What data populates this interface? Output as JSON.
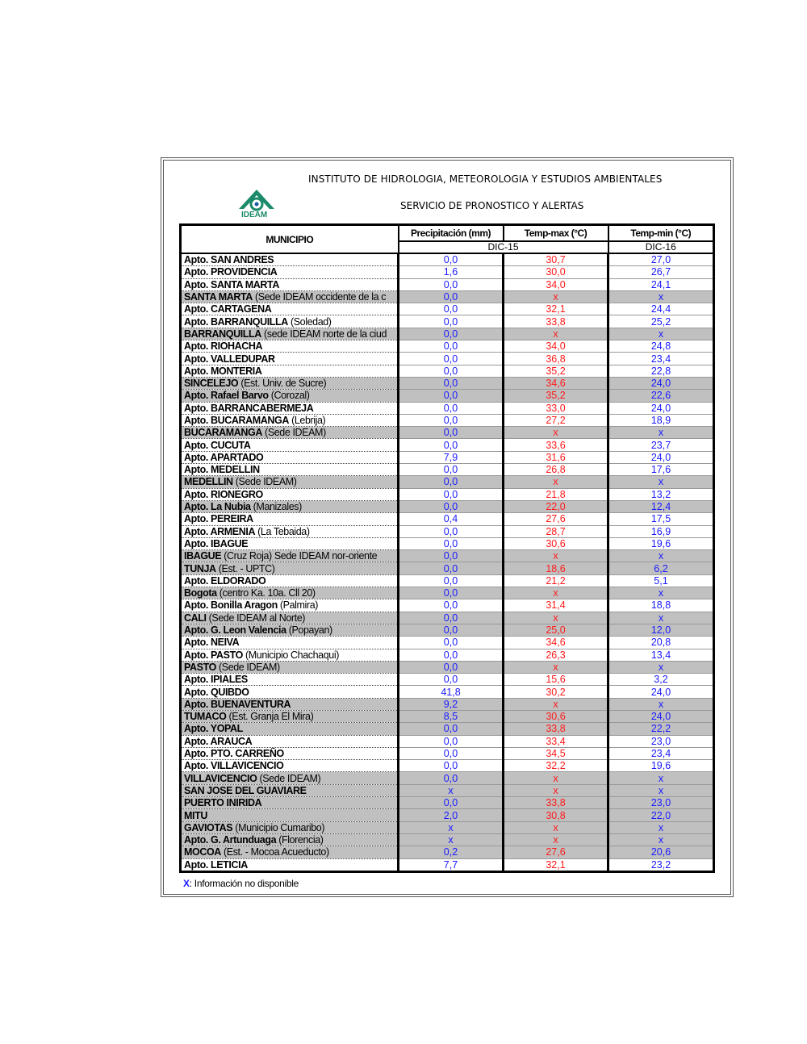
{
  "header": {
    "institute": "INSTITUTO DE HIDROLOGIA, METEOROLOGIA Y ESTUDIOS AMBIENTALES",
    "service": "SERVICIO DE PRONOSTICO Y ALERTAS",
    "logo_text": "IDEAM"
  },
  "colors": {
    "precip": "#1a1aff",
    "tmax": "#ff1a1a",
    "tmin": "#1a1aff",
    "shade": "#c0c0c0"
  },
  "table": {
    "columns": [
      "MUNICIPIO",
      "Precipitación (mm)",
      "Temp-max (°C)",
      "Temp-min (°C)"
    ],
    "date_1": "DIC-15",
    "date_2": "DIC-16",
    "rows": [
      [
        "Apto. SAN ANDRES",
        "",
        "0,0",
        "30,7",
        "27,0",
        0
      ],
      [
        "Apto. PROVIDENCIA",
        "",
        "1,6",
        "30,0",
        "26,7",
        0
      ],
      [
        "Apto. SANTA MARTA",
        "",
        "0,0",
        "34,0",
        "24,1",
        0
      ],
      [
        "SANTA MARTA",
        " (Sede IDEAM occidente de la c",
        "0,0",
        "x",
        "x",
        1
      ],
      [
        "Apto. CARTAGENA",
        "",
        "0,0",
        "32,1",
        "24,4",
        0
      ],
      [
        "Apto. BARRANQUILLA",
        " (Soledad)",
        "0,0",
        "33,8",
        "25,2",
        0
      ],
      [
        "BARRANQUILLA",
        " (sede IDEAM norte de la ciud",
        "0,0",
        "x",
        "x",
        1
      ],
      [
        "Apto. RIOHACHA",
        "",
        "0,0",
        "34,0",
        "24,8",
        0
      ],
      [
        "Apto. VALLEDUPAR",
        "",
        "0,0",
        "36,8",
        "23,4",
        0
      ],
      [
        "Apto. MONTERIA",
        "",
        "0,0",
        "35,2",
        "22,8",
        0
      ],
      [
        "SINCELEJO",
        " (Est. Univ. de Sucre)",
        "0,0",
        "34,6",
        "24,0",
        1
      ],
      [
        "Apto. Rafael Barvo",
        " (Corozal)",
        "0,0",
        "35,2",
        "22,6",
        1
      ],
      [
        "Apto. BARRANCABERMEJA",
        "",
        "0,0",
        "33,0",
        "24,0",
        0
      ],
      [
        "Apto. BUCARAMANGA",
        " (Lebrija)",
        "0,0",
        "27,2",
        "18,9",
        0
      ],
      [
        "BUCARAMANGA",
        " (Sede IDEAM)",
        "0,0",
        "x",
        "x",
        1
      ],
      [
        "Apto. CUCUTA",
        "",
        "0,0",
        "33,6",
        "23,7",
        0
      ],
      [
        "Apto. APARTADO",
        "",
        "7,9",
        "31,6",
        "24,0",
        0
      ],
      [
        "Apto. MEDELLIN",
        "",
        "0,0",
        "26,8",
        "17,6",
        0
      ],
      [
        "MEDELLIN",
        " (Sede IDEAM)",
        "0,0",
        "x",
        "x",
        1
      ],
      [
        "Apto. RIONEGRO",
        "",
        "0,0",
        "21,8",
        "13,2",
        0
      ],
      [
        "Apto. La Nubia",
        " (Manizales)",
        "0,0",
        "22,0",
        "12,4",
        1
      ],
      [
        "Apto. PEREIRA",
        "",
        "0,4",
        "27,6",
        "17,5",
        0
      ],
      [
        "Apto. ARMENIA",
        " (La Tebaida)",
        "0,0",
        "28,7",
        "16,9",
        0
      ],
      [
        "Apto. IBAGUE",
        "",
        "0,0",
        "30,6",
        "19,6",
        0
      ],
      [
        "IBAGUE",
        " (Cruz Roja) Sede IDEAM  nor-oriente",
        "0,0",
        "x",
        "x",
        1
      ],
      [
        "TUNJA",
        " (Est. - UPTC)",
        "0,0",
        "18,6",
        "6,2",
        1
      ],
      [
        "Apto. ELDORADO",
        "",
        "0,0",
        "21,2",
        "5,1",
        0
      ],
      [
        "Bogota",
        " (centro Ka. 10a. Cll 20)",
        "0,0",
        "x",
        "x",
        1
      ],
      [
        "Apto. Bonilla Aragon",
        " (Palmira)",
        "0,0",
        "31,4",
        "18,8",
        0
      ],
      [
        "CALI",
        " (Sede IDEAM al Norte)",
        "0,0",
        "x",
        "x",
        1
      ],
      [
        "Apto. G. Leon Valencia",
        " (Popayan)",
        "0,0",
        "25,0",
        "12,0",
        1
      ],
      [
        "Apto. NEIVA",
        "",
        "0,0",
        "34,6",
        "20,8",
        0
      ],
      [
        "Apto. PASTO",
        " (Municipio Chachaqui)",
        "0,0",
        "26,3",
        "13,4",
        0
      ],
      [
        "PASTO",
        " (Sede IDEAM)",
        "0,0",
        "x",
        "x",
        1
      ],
      [
        "Apto. IPIALES",
        "",
        "0,0",
        "15,6",
        "3,2",
        0
      ],
      [
        "Apto. QUIBDO",
        "",
        "41,8",
        "30,2",
        "24,0",
        0
      ],
      [
        "Apto. BUENAVENTURA",
        "",
        "9,2",
        "x",
        "x",
        1
      ],
      [
        "TUMACO",
        " (Est. Granja El Mira)",
        "8,5",
        "30,6",
        "24,0",
        1
      ],
      [
        "Apto. YOPAL",
        "",
        "0,0",
        "33,8",
        "22,2",
        1
      ],
      [
        "Apto. ARAUCA",
        "",
        "0,0",
        "33,4",
        "23,0",
        0
      ],
      [
        "Apto. PTO.  CARREÑO",
        "",
        "0,0",
        "34,5",
        "23,4",
        0
      ],
      [
        "Apto. VILLAVICENCIO",
        "",
        "0,0",
        "32,2",
        "19,6",
        0
      ],
      [
        "VILLAVICENCIO",
        " (Sede IDEAM)",
        "0,0",
        "x",
        "x",
        1
      ],
      [
        "SAN JOSE DEL GUAVIARE",
        "",
        "x",
        "x",
        "x",
        1
      ],
      [
        "PUERTO INIRIDA",
        "",
        "0,0",
        "33,8",
        "23,0",
        1
      ],
      [
        "MITU",
        "",
        "2,0",
        "30,8",
        "22,0",
        1
      ],
      [
        "GAVIOTAS",
        " (Municipio Cumaribo)",
        "x",
        "x",
        "x",
        1
      ],
      [
        "Apto. G. Artunduaga",
        " (Florencia)",
        "x",
        "x",
        "x",
        1
      ],
      [
        "MOCOA",
        " (Est. - Mocoa Acueducto)",
        "0,2",
        "27,6",
        "20,6",
        1
      ],
      [
        "Apto. LETICIA",
        "",
        "7,7",
        "32,1",
        "23,2",
        0
      ]
    ]
  },
  "footer": {
    "x_mark": "X",
    "note": ": Información no disponible"
  }
}
